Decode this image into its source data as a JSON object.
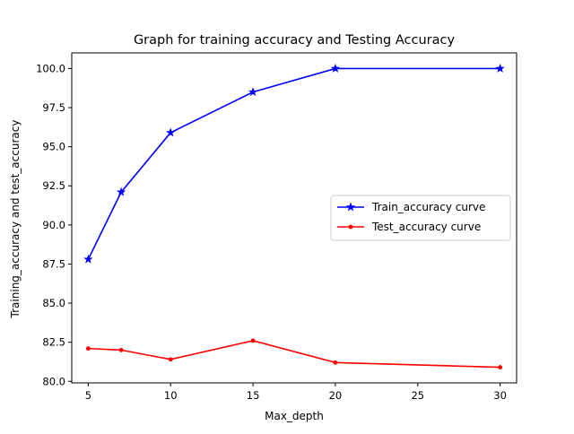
{
  "chart_data": {
    "type": "line",
    "title": "Graph for training accuracy and Testing Accuracy",
    "xlabel": "Max_depth",
    "ylabel": "Training_accuracy and test_accuracy",
    "xlim": [
      4,
      31
    ],
    "ylim": [
      79.9,
      101.0
    ],
    "xticks": [
      5,
      10,
      15,
      20,
      25,
      30
    ],
    "xtick_labels": [
      "5",
      "10",
      "15",
      "20",
      "25",
      "30"
    ],
    "yticks": [
      80.0,
      82.5,
      85.0,
      87.5,
      90.0,
      92.5,
      95.0,
      97.5,
      100.0
    ],
    "ytick_labels": [
      "80.0",
      "82.5",
      "85.0",
      "87.5",
      "90.0",
      "92.5",
      "95.0",
      "97.5",
      "100.0"
    ],
    "grid": false,
    "legend_position": "center-right",
    "x": [
      5,
      7,
      10,
      15,
      20,
      30
    ],
    "series": [
      {
        "name": "Train_accuracy curve",
        "values": [
          87.8,
          92.1,
          95.9,
          98.5,
          100.0,
          100.0
        ],
        "color": "#0000ff",
        "marker": "star"
      },
      {
        "name": "Test_accuracy curve",
        "values": [
          82.1,
          82.0,
          81.4,
          82.6,
          81.2,
          80.9
        ],
        "color": "#ff0000",
        "marker": "dot"
      }
    ]
  }
}
